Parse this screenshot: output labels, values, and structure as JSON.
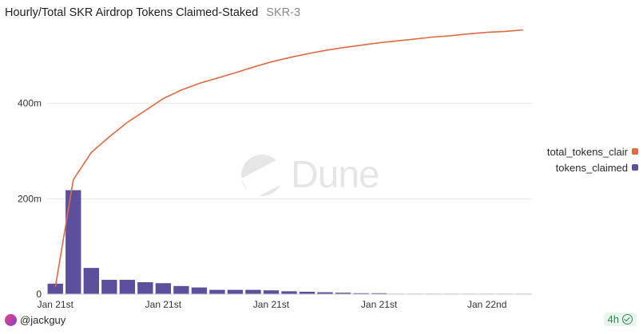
{
  "header": {
    "title": "Hourly/Total SKR Airdrop Tokens Claimed-Staked",
    "subtitle": "SKR-3"
  },
  "watermark": {
    "text": "Dune"
  },
  "footer": {
    "user": "@jackguy",
    "refresh_label": "4h"
  },
  "colors": {
    "line": "#e26a40",
    "bars": "#5b4f9e",
    "grid": "#e6e6e6",
    "refresh_badge": "#2f8a4e"
  },
  "icons": {
    "avatar": "user-avatar-icon",
    "refresh": "check-circle-icon",
    "watermark": "dune-logo-icon"
  },
  "chart_data": {
    "type": "bar+line",
    "title": "Hourly/Total SKR Airdrop Tokens Claimed-Staked",
    "subtitle": "SKR-3",
    "xlabel": "",
    "ylabel": "",
    "ylim": [
      0,
      570
    ],
    "y_unit": "m",
    "y_ticks": [
      0,
      200,
      400
    ],
    "y_tick_labels": [
      "0",
      "200m",
      "400m"
    ],
    "x_tick_labels": [
      "Jan 21st",
      "Jan 21st",
      "Jan 21st",
      "Jan 21st",
      "Jan 22nd"
    ],
    "x_tick_positions": [
      0,
      6,
      12,
      18,
      24
    ],
    "grid": true,
    "legend_position": "right",
    "series": [
      {
        "name": "total_tokens_claimed",
        "legend_label": "total_tokens_clair",
        "kind": "line",
        "color": "#e26a40",
        "values": [
          15,
          240,
          297,
          330,
          360,
          385,
          410,
          428,
          442,
          453,
          464,
          476,
          487,
          496,
          504,
          511,
          517,
          522,
          527,
          531,
          535,
          539,
          542,
          546,
          549,
          551,
          554
        ]
      },
      {
        "name": "tokens_claimed",
        "legend_label": "tokens_claimed",
        "kind": "bar",
        "color": "#5b4f9e",
        "values": [
          22,
          218,
          55,
          30,
          30,
          25,
          23,
          17,
          14,
          9,
          9,
          9,
          8,
          6,
          5,
          4,
          3,
          2,
          2,
          1,
          1,
          1,
          1,
          1,
          1,
          1,
          1
        ]
      }
    ]
  }
}
